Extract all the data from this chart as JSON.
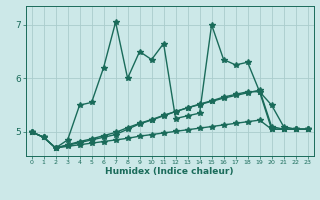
{
  "xlabel": "Humidex (Indice chaleur)",
  "xlim": [
    -0.5,
    23.5
  ],
  "ylim": [
    4.55,
    7.35
  ],
  "xticks": [
    0,
    1,
    2,
    3,
    4,
    5,
    6,
    7,
    8,
    9,
    10,
    11,
    12,
    13,
    14,
    15,
    16,
    17,
    18,
    19,
    20,
    21,
    22,
    23
  ],
  "yticks": [
    5,
    6,
    7
  ],
  "background_color": "#cce8e8",
  "grid_color": "#aacccc",
  "line_color": "#1a6b5a",
  "series": {
    "volatile": [
      5.0,
      4.9,
      4.7,
      4.85,
      5.5,
      5.55,
      6.2,
      7.05,
      6.0,
      6.5,
      6.35,
      6.65,
      5.25,
      5.3,
      5.35,
      7.0,
      6.35,
      6.25,
      6.3,
      5.75,
      5.5,
      5.1,
      5.05,
      5.05
    ],
    "rising1": [
      5.0,
      4.9,
      4.7,
      4.75,
      4.8,
      4.85,
      4.9,
      4.95,
      5.05,
      5.15,
      5.22,
      5.3,
      5.38,
      5.45,
      5.52,
      5.58,
      5.65,
      5.7,
      5.75,
      5.75,
      5.05,
      5.05,
      5.05,
      5.05
    ],
    "rising2": [
      5.0,
      4.9,
      4.7,
      4.76,
      4.82,
      4.87,
      4.93,
      4.99,
      5.08,
      5.16,
      5.23,
      5.31,
      5.38,
      5.45,
      5.51,
      5.57,
      5.63,
      5.68,
      5.73,
      5.78,
      5.1,
      5.05,
      5.05,
      5.05
    ],
    "flat": [
      5.0,
      4.9,
      4.7,
      4.73,
      4.76,
      4.79,
      4.82,
      4.85,
      4.88,
      4.92,
      4.95,
      4.98,
      5.01,
      5.04,
      5.07,
      5.1,
      5.13,
      5.16,
      5.19,
      5.22,
      5.05,
      5.05,
      5.05,
      5.05
    ]
  },
  "marker": "*",
  "markersize": 4,
  "linewidth": 1.0
}
